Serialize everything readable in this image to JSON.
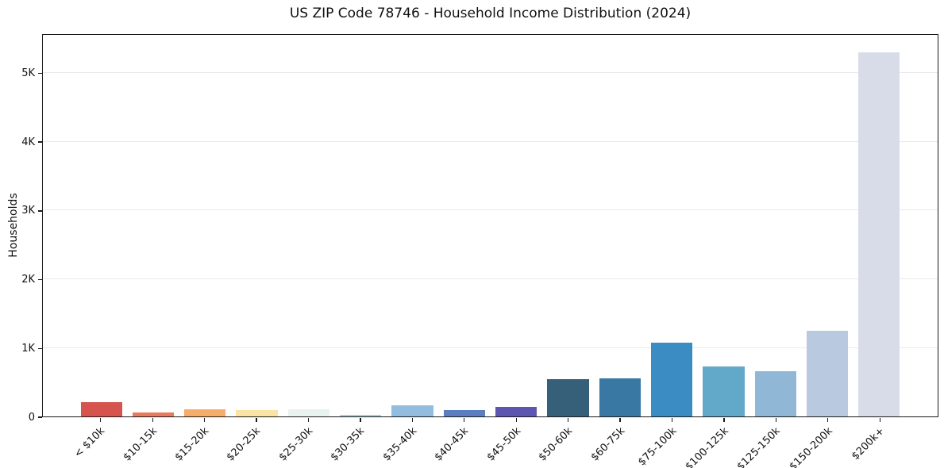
{
  "chart_data": {
    "type": "bar",
    "title": "US ZIP Code 78746 - Household Income Distribution (2024)",
    "xlabel": "",
    "ylabel": "Households",
    "categories": [
      "< $10k",
      "$10-15k",
      "$15-20k",
      "$20-25k",
      "$25-30k",
      "$30-35k",
      "$35-40k",
      "$40-45k",
      "$45-50k",
      "$50-60k",
      "$60-75k",
      "$75-100k",
      "$100-125k",
      "$125-150k",
      "$150-200k",
      "$200k+"
    ],
    "values": [
      210,
      55,
      100,
      90,
      105,
      25,
      165,
      90,
      140,
      545,
      550,
      1070,
      730,
      660,
      1250,
      5290
    ],
    "bar_colors": [
      "#d6544e",
      "#e97a5b",
      "#f6ad6b",
      "#fae3a3",
      "#e8f3f0",
      "#a6d1e2",
      "#93bdde",
      "#5b7ec0",
      "#5d55b0",
      "#36607a",
      "#3878a3",
      "#3a8cc3",
      "#62a8c9",
      "#90b7d6",
      "#b8c9e0",
      "#d8dce9"
    ],
    "ytick_labels": [
      "0",
      "1K",
      "2K",
      "3K",
      "4K",
      "5K"
    ],
    "ytick_values": [
      0,
      1000,
      2000,
      3000,
      4000,
      5000
    ],
    "ylim": [
      0,
      5570
    ],
    "grid": true,
    "grid_color": "#e9e9ed",
    "legend": "none",
    "background_color": "#ffffff",
    "spine_color": "#1a1a1a"
  }
}
